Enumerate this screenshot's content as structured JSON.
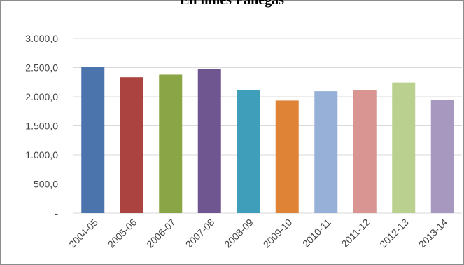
{
  "chart_data": {
    "type": "bar",
    "title": "En miles Fanegas",
    "categories": [
      "2004-05",
      "2005-06",
      "2006-07",
      "2007-08",
      "2008-09",
      "2009-10",
      "2010-11",
      "2011-12",
      "2012-13",
      "2013-14"
    ],
    "values": [
      2510,
      2335,
      2380,
      2480,
      2110,
      1935,
      2095,
      2110,
      2245,
      1950
    ],
    "colors": [
      "#4a74ab",
      "#ab4441",
      "#89a545",
      "#6f5691",
      "#3f9fba",
      "#df8437",
      "#97b0d8",
      "#d89591",
      "#b9d08f",
      "#a798c0"
    ],
    "ylim": [
      0,
      3000
    ],
    "yticks": [
      0,
      500,
      1000,
      1500,
      2000,
      2500,
      3000
    ],
    "ytick_labels": [
      "-",
      "500,0",
      "1.000,0",
      "1.500,0",
      "2.000,0",
      "2.500,0",
      "3.000,0"
    ],
    "grid": true,
    "legend": "none",
    "xlabel": "",
    "ylabel": ""
  }
}
